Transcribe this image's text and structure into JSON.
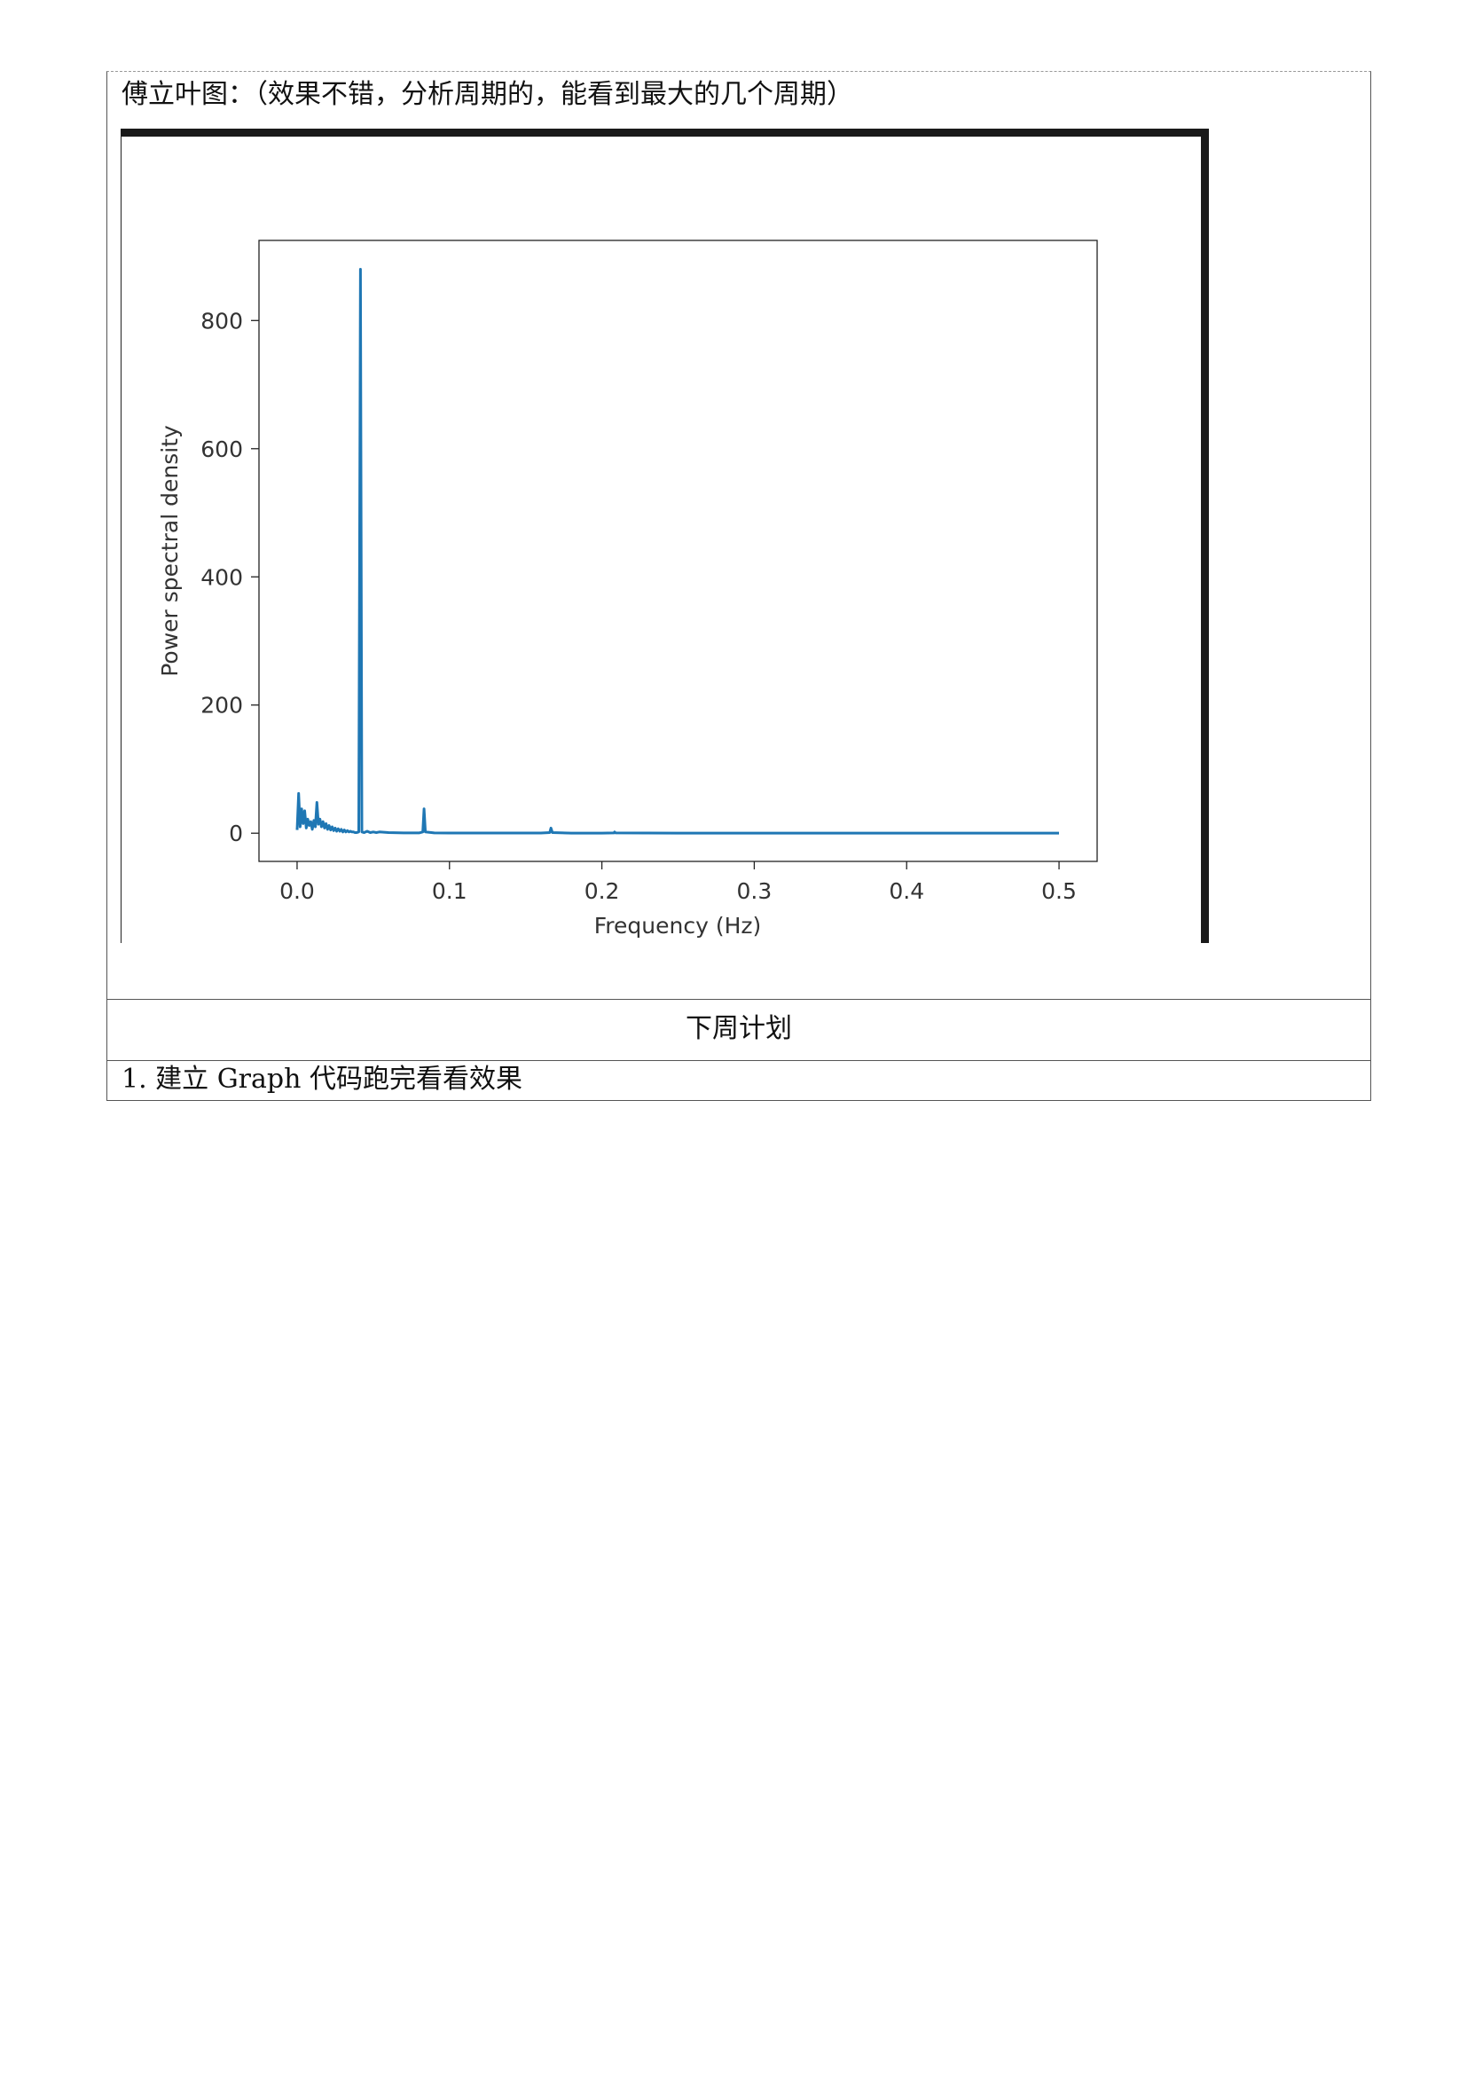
{
  "document": {
    "caption": "傅立叶图：（效果不错，分析周期的，能看到最大的几个周期）",
    "section_heading": "下周计划",
    "plan_items": [
      "1.  建立 Graph 代码跑完看看效果"
    ]
  },
  "chart_data": {
    "type": "line",
    "title": "",
    "xlabel": "Frequency (Hz)",
    "ylabel": "Power spectral density",
    "xlim": [
      -0.025,
      0.525
    ],
    "ylim": [
      -44,
      925
    ],
    "xticks": [
      0.0,
      0.1,
      0.2,
      0.3,
      0.4,
      0.5
    ],
    "xtick_labels": [
      "0.0",
      "0.1",
      "0.2",
      "0.3",
      "0.4",
      "0.5"
    ],
    "yticks": [
      0,
      200,
      400,
      600,
      800
    ],
    "ytick_labels": [
      "0",
      "200",
      "400",
      "600",
      "800"
    ],
    "grid": false,
    "color": "#1f77b4",
    "series": [
      {
        "x": [
          0.0,
          0.001,
          0.002,
          0.003,
          0.004,
          0.005,
          0.006,
          0.007,
          0.008,
          0.009,
          0.01,
          0.011,
          0.012,
          0.013,
          0.014,
          0.015,
          0.016,
          0.017,
          0.018,
          0.019,
          0.02,
          0.021,
          0.022,
          0.023,
          0.024,
          0.025,
          0.026,
          0.027,
          0.028,
          0.029,
          0.03,
          0.031,
          0.032,
          0.033,
          0.034,
          0.035,
          0.036,
          0.037,
          0.038,
          0.039,
          0.0405,
          0.0416,
          0.0425,
          0.044,
          0.046,
          0.048,
          0.05,
          0.052,
          0.054,
          0.06,
          0.07,
          0.08,
          0.0825,
          0.0833,
          0.0842,
          0.09,
          0.1,
          0.12,
          0.14,
          0.16,
          0.1658,
          0.1666,
          0.1675,
          0.18,
          0.2,
          0.208,
          0.2083,
          0.209,
          0.25,
          0.3,
          0.35,
          0.4,
          0.45,
          0.5
        ],
        "y": [
          5,
          62,
          10,
          38,
          15,
          35,
          8,
          22,
          12,
          18,
          6,
          20,
          10,
          48,
          14,
          22,
          10,
          18,
          8,
          15,
          6,
          12,
          5,
          10,
          4,
          8,
          3,
          7,
          3,
          6,
          2,
          5,
          2,
          4,
          2,
          3,
          2,
          2,
          1,
          1,
          2,
          880,
          2,
          1,
          3,
          1,
          2,
          1,
          2,
          1,
          0.5,
          0.5,
          2,
          38,
          2,
          0.5,
          0.3,
          0.3,
          0.3,
          0.3,
          1,
          8,
          1,
          0.2,
          0.2,
          0.5,
          2,
          0.5,
          0.1,
          0.1,
          0.1,
          0.1,
          0.1,
          0.1
        ]
      }
    ]
  }
}
